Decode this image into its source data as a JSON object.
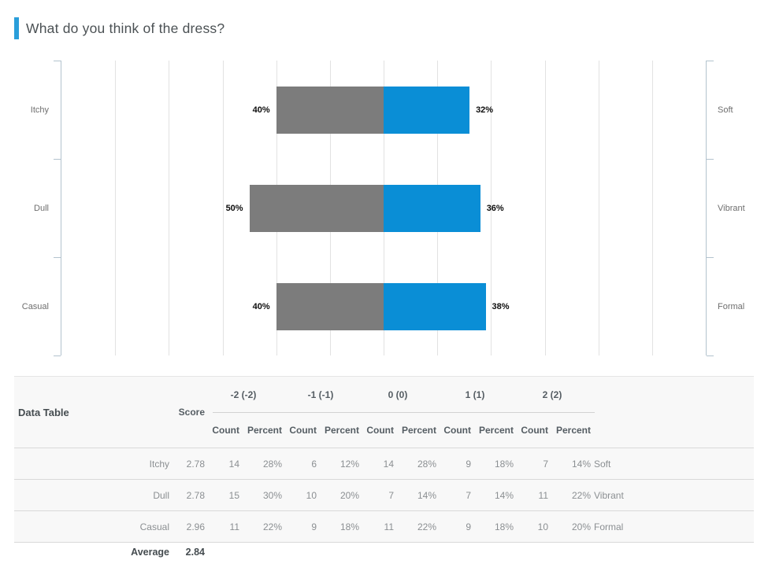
{
  "title": "What do you think of the dress?",
  "colors": {
    "accent": "#2a9eda",
    "negative_bar": "#7c7c7c",
    "positive_bar": "#0a8ed6",
    "gridline": "#e2e2e2",
    "axis": "#b3c3ce"
  },
  "chart_data": {
    "type": "bar",
    "subtype": "diverging-horizontal",
    "axis_range_pct": [
      -120,
      120
    ],
    "gridline_step_pct": 20,
    "grid": "on",
    "rows": [
      {
        "left_label": "Itchy",
        "right_label": "Soft",
        "left_pct": 40,
        "right_pct": 32
      },
      {
        "left_label": "Dull",
        "right_label": "Vibrant",
        "left_pct": 50,
        "right_pct": 36
      },
      {
        "left_label": "Casual",
        "right_label": "Formal",
        "left_pct": 40,
        "right_pct": 38
      }
    ]
  },
  "table": {
    "title": "Data Table",
    "score_header": "Score",
    "group_headers": [
      "-2 (-2)",
      "-1 (-1)",
      "0 (0)",
      "1 (1)",
      "2 (2)"
    ],
    "sub_headers": [
      "Count",
      "Percent"
    ],
    "rows": [
      {
        "label": "Itchy",
        "score": "2.78",
        "cells": [
          "14",
          "28%",
          "6",
          "12%",
          "14",
          "28%",
          "9",
          "18%",
          "7",
          "14%"
        ],
        "right_label": "Soft"
      },
      {
        "label": "Dull",
        "score": "2.78",
        "cells": [
          "15",
          "30%",
          "10",
          "20%",
          "7",
          "14%",
          "7",
          "14%",
          "11",
          "22%"
        ],
        "right_label": "Vibrant"
      },
      {
        "label": "Casual",
        "score": "2.96",
        "cells": [
          "11",
          "22%",
          "9",
          "18%",
          "11",
          "22%",
          "9",
          "18%",
          "10",
          "20%"
        ],
        "right_label": "Formal"
      }
    ],
    "average_label": "Average",
    "average_value": "2.84"
  }
}
